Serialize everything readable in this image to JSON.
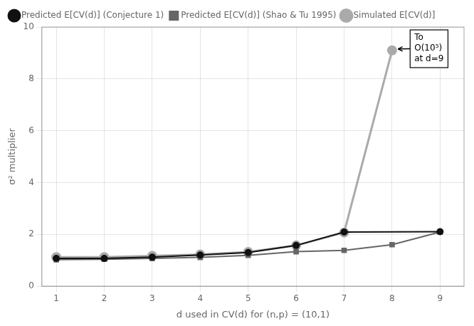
{
  "chart_data": {
    "type": "line",
    "xlabel": "d used in CV(d) for (n,p) = (10,1)",
    "ylabel": "σ² multiplier",
    "series": [
      {
        "name": "Simulated E[CV(d)]",
        "color": "#aaaaaa",
        "marker": "circle",
        "line_style": "solid",
        "x": [
          1,
          2,
          3,
          4,
          5,
          6,
          7,
          8
        ],
        "values": [
          1.12,
          1.12,
          1.17,
          1.22,
          1.32,
          1.57,
          2.07,
          9.1
        ]
      },
      {
        "name": "Predicted E[CV(d)] (Conjecture 1)",
        "color": "#111111",
        "marker": "circle",
        "line_style": "solid",
        "x": [
          1,
          2,
          3,
          4,
          5,
          6,
          7,
          9
        ],
        "values": [
          1.07,
          1.07,
          1.12,
          1.2,
          1.3,
          1.57,
          2.09,
          2.1
        ]
      },
      {
        "name": "Predicted E[CV(d)] (Shao & Tu 1995)",
        "color": "#666666",
        "marker": "square",
        "line_style": "solid",
        "x": [
          1,
          2,
          3,
          4,
          5,
          6,
          7,
          8,
          9
        ],
        "values": [
          1.02,
          1.04,
          1.07,
          1.11,
          1.19,
          1.33,
          1.38,
          1.6,
          2.09
        ]
      }
    ],
    "xlim": [
      0.7,
      9.5
    ],
    "xticks": [
      1,
      2,
      3,
      4,
      5,
      6,
      7,
      8,
      9
    ],
    "ylim": [
      0,
      10
    ],
    "yticks": [
      0,
      2,
      4,
      6,
      8,
      10
    ],
    "grid": true,
    "legend": "upper left",
    "annotations": [
      {
        "text": [
          "To",
          "O(10⁵)",
          "at d=9"
        ],
        "x": 8.02,
        "y": 9.15
      }
    ]
  }
}
